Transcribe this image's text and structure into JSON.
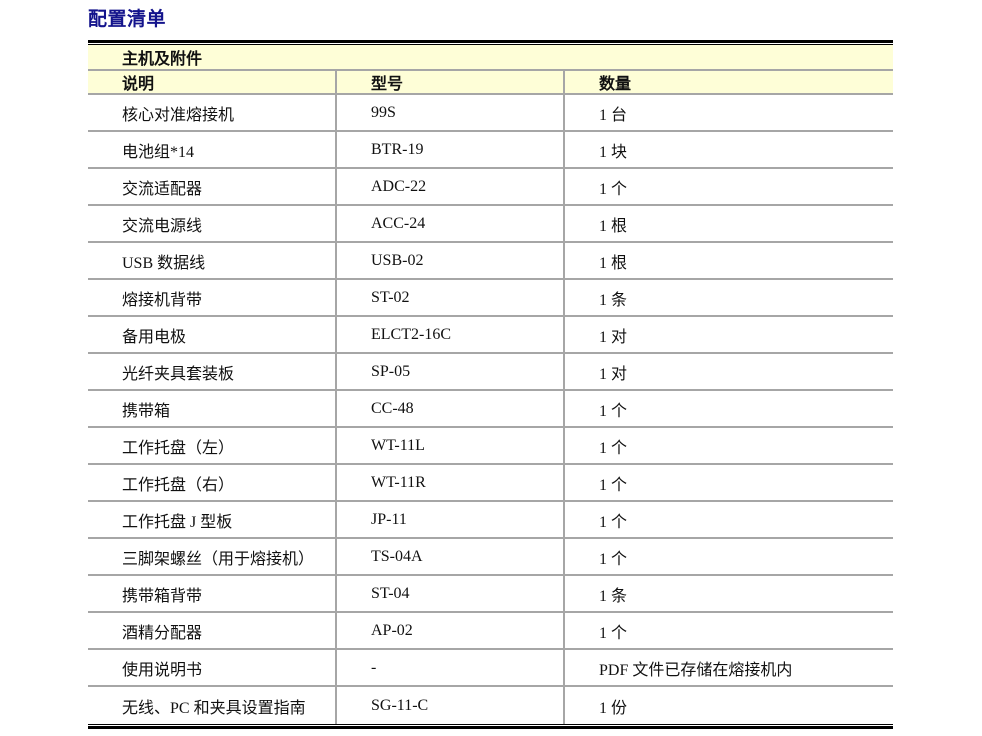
{
  "page": {
    "title": "配置清单"
  },
  "table": {
    "section_header": "主机及附件",
    "columns": [
      "说明",
      "型号",
      "数量"
    ],
    "rows": [
      [
        "核心对准熔接机",
        "99S",
        "1 台"
      ],
      [
        "电池组*14",
        "BTR-19",
        "1 块"
      ],
      [
        "交流适配器",
        "ADC-22",
        "1 个"
      ],
      [
        "交流电源线",
        "ACC-24",
        "1 根"
      ],
      [
        "USB 数据线",
        "USB-02",
        "1 根"
      ],
      [
        "熔接机背带",
        "ST-02",
        "1 条"
      ],
      [
        "备用电极",
        "ELCT2-16C",
        "1 对"
      ],
      [
        "光纤夹具套装板",
        "SP-05",
        "1 对"
      ],
      [
        "携带箱",
        "CC-48",
        "1 个"
      ],
      [
        "工作托盘（左）",
        "WT-11L",
        "1 个"
      ],
      [
        "工作托盘（右）",
        "WT-11R",
        "1 个"
      ],
      [
        "工作托盘 J 型板",
        "JP-11",
        "1 个"
      ],
      [
        "三脚架螺丝（用于熔接机）",
        "TS-04A",
        "1 个"
      ],
      [
        "携带箱背带",
        "ST-04",
        "1 条"
      ],
      [
        "酒精分配器",
        "AP-02",
        "1 个"
      ],
      [
        "使用说明书",
        "-",
        "PDF 文件已存储在熔接机内"
      ],
      [
        "无线、PC 和夹具设置指南",
        "SG-11-C",
        "1 份"
      ]
    ],
    "colors": {
      "title_color": "#14148c",
      "header_bg": "#fefed7",
      "grid_line": "#a6a6a6",
      "outer_border": "#000000"
    }
  }
}
